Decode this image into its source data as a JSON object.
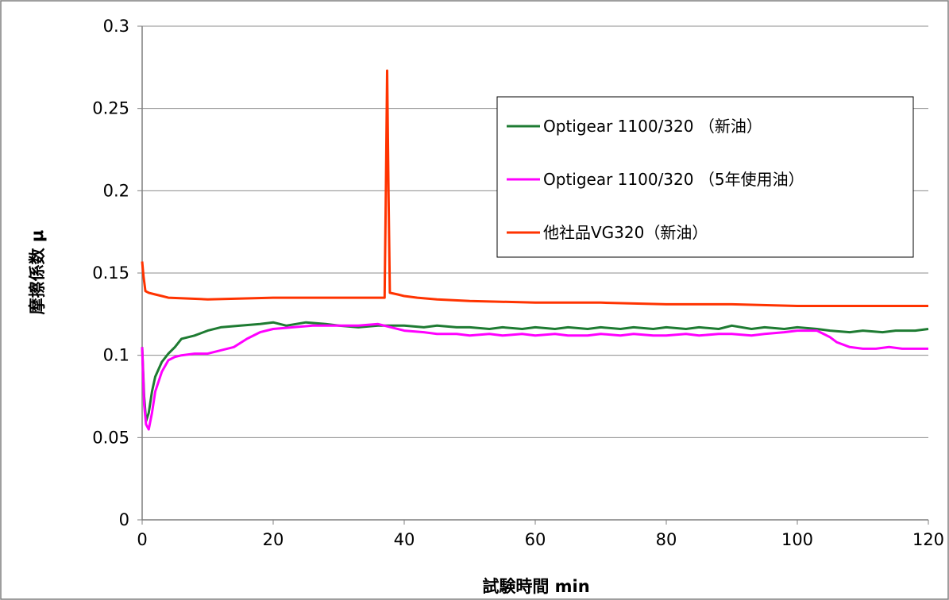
{
  "chart_data": {
    "type": "line",
    "title": "",
    "xlabel": "試験時間 min",
    "ylabel": "摩擦係数 μ",
    "xlim": [
      0,
      120
    ],
    "ylim": [
      0,
      0.3
    ],
    "xticks": [
      "0",
      "20",
      "40",
      "60",
      "80",
      "100",
      "120"
    ],
    "yticks": [
      "0",
      "0.05",
      "0.1",
      "0.15",
      "0.2",
      "0.25",
      "0.3"
    ],
    "grid": "horizontal",
    "legend_position": "top-right",
    "series": [
      {
        "name": "Optigear 1100/320 （新油）",
        "color": "#1e7b32",
        "points": [
          [
            0,
            0.105
          ],
          [
            0.3,
            0.075
          ],
          [
            0.6,
            0.06
          ],
          [
            1,
            0.065
          ],
          [
            1.5,
            0.078
          ],
          [
            2,
            0.087
          ],
          [
            3,
            0.096
          ],
          [
            4,
            0.101
          ],
          [
            5,
            0.105
          ],
          [
            6,
            0.11
          ],
          [
            8,
            0.112
          ],
          [
            10,
            0.115
          ],
          [
            12,
            0.117
          ],
          [
            15,
            0.118
          ],
          [
            18,
            0.119
          ],
          [
            20,
            0.12
          ],
          [
            22,
            0.118
          ],
          [
            25,
            0.12
          ],
          [
            28,
            0.119
          ],
          [
            30,
            0.118
          ],
          [
            33,
            0.117
          ],
          [
            36,
            0.118
          ],
          [
            38,
            0.118
          ],
          [
            40,
            0.118
          ],
          [
            43,
            0.117
          ],
          [
            45,
            0.118
          ],
          [
            48,
            0.117
          ],
          [
            50,
            0.117
          ],
          [
            53,
            0.116
          ],
          [
            55,
            0.117
          ],
          [
            58,
            0.116
          ],
          [
            60,
            0.117
          ],
          [
            63,
            0.116
          ],
          [
            65,
            0.117
          ],
          [
            68,
            0.116
          ],
          [
            70,
            0.117
          ],
          [
            73,
            0.116
          ],
          [
            75,
            0.117
          ],
          [
            78,
            0.116
          ],
          [
            80,
            0.117
          ],
          [
            83,
            0.116
          ],
          [
            85,
            0.117
          ],
          [
            88,
            0.116
          ],
          [
            90,
            0.118
          ],
          [
            93,
            0.116
          ],
          [
            95,
            0.117
          ],
          [
            98,
            0.116
          ],
          [
            100,
            0.117
          ],
          [
            103,
            0.116
          ],
          [
            105,
            0.115
          ],
          [
            108,
            0.114
          ],
          [
            110,
            0.115
          ],
          [
            113,
            0.114
          ],
          [
            115,
            0.115
          ],
          [
            118,
            0.115
          ],
          [
            120,
            0.116
          ]
        ]
      },
      {
        "name": "Optigear 1100/320 （5年使用油）",
        "color": "#ff00ff",
        "points": [
          [
            0,
            0.105
          ],
          [
            0.3,
            0.07
          ],
          [
            0.6,
            0.058
          ],
          [
            1,
            0.055
          ],
          [
            1.5,
            0.065
          ],
          [
            2,
            0.078
          ],
          [
            3,
            0.09
          ],
          [
            4,
            0.097
          ],
          [
            5,
            0.099
          ],
          [
            6,
            0.1
          ],
          [
            8,
            0.101
          ],
          [
            10,
            0.101
          ],
          [
            12,
            0.103
          ],
          [
            14,
            0.105
          ],
          [
            16,
            0.11
          ],
          [
            18,
            0.114
          ],
          [
            20,
            0.116
          ],
          [
            23,
            0.117
          ],
          [
            26,
            0.118
          ],
          [
            30,
            0.118
          ],
          [
            33,
            0.118
          ],
          [
            36,
            0.119
          ],
          [
            38,
            0.117
          ],
          [
            40,
            0.115
          ],
          [
            43,
            0.114
          ],
          [
            45,
            0.113
          ],
          [
            48,
            0.113
          ],
          [
            50,
            0.112
          ],
          [
            53,
            0.113
          ],
          [
            55,
            0.112
          ],
          [
            58,
            0.113
          ],
          [
            60,
            0.112
          ],
          [
            63,
            0.113
          ],
          [
            65,
            0.112
          ],
          [
            68,
            0.112
          ],
          [
            70,
            0.113
          ],
          [
            73,
            0.112
          ],
          [
            75,
            0.113
          ],
          [
            78,
            0.112
          ],
          [
            80,
            0.112
          ],
          [
            83,
            0.113
          ],
          [
            85,
            0.112
          ],
          [
            88,
            0.113
          ],
          [
            90,
            0.113
          ],
          [
            93,
            0.112
          ],
          [
            95,
            0.113
          ],
          [
            98,
            0.114
          ],
          [
            100,
            0.115
          ],
          [
            103,
            0.115
          ],
          [
            105,
            0.111
          ],
          [
            106,
            0.108
          ],
          [
            108,
            0.105
          ],
          [
            110,
            0.104
          ],
          [
            112,
            0.104
          ],
          [
            114,
            0.105
          ],
          [
            116,
            0.104
          ],
          [
            118,
            0.104
          ],
          [
            120,
            0.104
          ]
        ]
      },
      {
        "name": "他社品VG320（新油）",
        "color": "#ff3300",
        "points": [
          [
            0,
            0.157
          ],
          [
            0.2,
            0.148
          ],
          [
            0.5,
            0.139
          ],
          [
            1,
            0.138
          ],
          [
            2,
            0.137
          ],
          [
            3,
            0.136
          ],
          [
            4,
            0.135
          ],
          [
            10,
            0.134
          ],
          [
            20,
            0.135
          ],
          [
            30,
            0.135
          ],
          [
            37,
            0.135
          ],
          [
            37.2,
            0.2
          ],
          [
            37.4,
            0.273
          ],
          [
            37.6,
            0.2
          ],
          [
            37.8,
            0.138
          ],
          [
            39,
            0.137
          ],
          [
            40,
            0.136
          ],
          [
            42,
            0.135
          ],
          [
            45,
            0.134
          ],
          [
            50,
            0.133
          ],
          [
            60,
            0.132
          ],
          [
            70,
            0.132
          ],
          [
            80,
            0.131
          ],
          [
            90,
            0.131
          ],
          [
            100,
            0.13
          ],
          [
            110,
            0.13
          ],
          [
            120,
            0.13
          ]
        ]
      }
    ]
  }
}
